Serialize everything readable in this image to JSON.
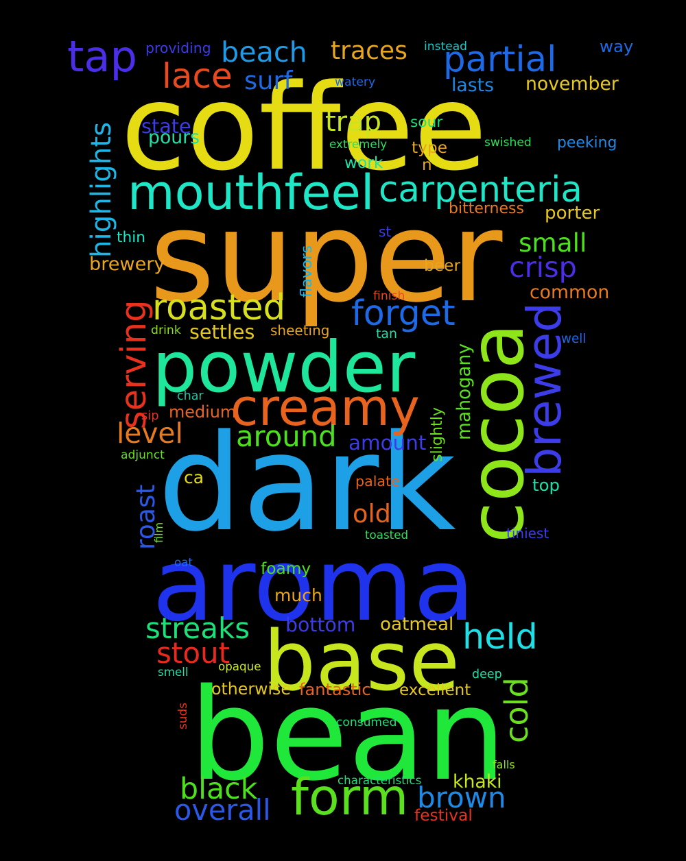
{
  "background": "#000000",
  "words": [
    {
      "text": "coffee",
      "color": "#e6dc14"
    },
    {
      "text": "super",
      "color": "#e8981a"
    },
    {
      "text": "dark",
      "color": "#1ea0e6"
    },
    {
      "text": "aroma",
      "color": "#1f32ec"
    },
    {
      "text": "bean",
      "color": "#1fe83a"
    },
    {
      "text": "base",
      "color": "#c8e61e"
    },
    {
      "text": "powder",
      "color": "#1ee69a"
    },
    {
      "text": "cocoa",
      "color": "#8ee61a"
    },
    {
      "text": "form",
      "color": "#5ae01e"
    },
    {
      "text": "mouthfeel",
      "color": "#1ee6c6"
    },
    {
      "text": "carpenteria",
      "color": "#1ee6c6"
    },
    {
      "text": "creamy",
      "color": "#e8641e"
    },
    {
      "text": "tap",
      "color": "#4b2ee8"
    },
    {
      "text": "partial",
      "color": "#1e6ae6"
    },
    {
      "text": "roasted",
      "color": "#d8e01e"
    },
    {
      "text": "forget",
      "color": "#1e6ae6"
    },
    {
      "text": "brewed",
      "color": "#3c3ce8"
    },
    {
      "text": "held",
      "color": "#1ee0e6"
    },
    {
      "text": "lace",
      "color": "#e84a1e"
    },
    {
      "text": "beach",
      "color": "#1e9ae6"
    },
    {
      "text": "surf",
      "color": "#1e6ae6"
    },
    {
      "text": "traces",
      "color": "#e8a61e"
    },
    {
      "text": "highlights",
      "color": "#1eb6e6"
    },
    {
      "text": "serving",
      "color": "#e8321e"
    },
    {
      "text": "trap",
      "color": "#c8e61e"
    },
    {
      "text": "streaks",
      "color": "#1ee07a"
    },
    {
      "text": "stout",
      "color": "#e82a1e"
    },
    {
      "text": "black",
      "color": "#4ee01e"
    },
    {
      "text": "brown",
      "color": "#1e8ae6"
    },
    {
      "text": "overall",
      "color": "#2a58e8"
    },
    {
      "text": "cold",
      "color": "#6ae01e"
    },
    {
      "text": "around",
      "color": "#4ee01e"
    },
    {
      "text": "level",
      "color": "#e87a1e"
    },
    {
      "text": "crisp",
      "color": "#4b2ee8"
    },
    {
      "text": "small",
      "color": "#4ee01e"
    },
    {
      "text": "old",
      "color": "#e8641e"
    },
    {
      "text": "roast",
      "color": "#2a58e8"
    },
    {
      "text": "lasts",
      "color": "#1e8ae6"
    },
    {
      "text": "november",
      "color": "#e6c81e"
    },
    {
      "text": "way",
      "color": "#1e6ae6"
    },
    {
      "text": "instead",
      "color": "#1ec6c6"
    },
    {
      "text": "providing",
      "color": "#3c3ce8"
    },
    {
      "text": "watery",
      "color": "#1e6ae6"
    },
    {
      "text": "state",
      "color": "#3c3ce8"
    },
    {
      "text": "pours",
      "color": "#1ee0a6"
    },
    {
      "text": "sour",
      "color": "#1ee07a"
    },
    {
      "text": "extremely",
      "color": "#2ae05a"
    },
    {
      "text": "swished",
      "color": "#2ae05a"
    },
    {
      "text": "peeking",
      "color": "#1e8ae6"
    },
    {
      "text": "type",
      "color": "#e8a61e"
    },
    {
      "text": "work",
      "color": "#1ee0a6"
    },
    {
      "text": "n",
      "color": "#e8a61e"
    },
    {
      "text": "bitterness",
      "color": "#e87a1e"
    },
    {
      "text": "porter",
      "color": "#e6c81e"
    },
    {
      "text": "thin",
      "color": "#1ee6c6"
    },
    {
      "text": "st",
      "color": "#3c3ce8"
    },
    {
      "text": "brewery",
      "color": "#e8a61e"
    },
    {
      "text": "flavors",
      "color": "#1eb6e6"
    },
    {
      "text": "beer",
      "color": "#e8a61e"
    },
    {
      "text": "finish",
      "color": "#e84a1e"
    },
    {
      "text": "common",
      "color": "#e87a1e"
    },
    {
      "text": "drink",
      "color": "#8ee01e"
    },
    {
      "text": "settles",
      "color": "#e6c81e"
    },
    {
      "text": "sheeting",
      "color": "#e8a61e"
    },
    {
      "text": "tan",
      "color": "#1ee0a6"
    },
    {
      "text": "well",
      "color": "#1e6ae6"
    },
    {
      "text": "mahogany",
      "color": "#5ae01e"
    },
    {
      "text": "slightly",
      "color": "#6ae01e"
    },
    {
      "text": "char",
      "color": "#1ec6a6"
    },
    {
      "text": "sip",
      "color": "#e8321e"
    },
    {
      "text": "medium",
      "color": "#e8641e"
    },
    {
      "text": "amount",
      "color": "#3c3ce8"
    },
    {
      "text": "adjunct",
      "color": "#6ae01e"
    },
    {
      "text": "ca",
      "color": "#e6dc14"
    },
    {
      "text": "palate",
      "color": "#e8641e"
    },
    {
      "text": "top",
      "color": "#1ee0a6"
    },
    {
      "text": "tiniest",
      "color": "#3c3ce8"
    },
    {
      "text": "film",
      "color": "#6ae01e"
    },
    {
      "text": "toasted",
      "color": "#2ae05a"
    },
    {
      "text": "oat",
      "color": "#1e6ae6"
    },
    {
      "text": "foamy",
      "color": "#4ee01e"
    },
    {
      "text": "much",
      "color": "#e8a61e"
    },
    {
      "text": "bottom",
      "color": "#3c3ce8"
    },
    {
      "text": "oatmeal",
      "color": "#e6c81e"
    },
    {
      "text": "opaque",
      "color": "#c8e61e"
    },
    {
      "text": "smell",
      "color": "#1ee0a6"
    },
    {
      "text": "deep",
      "color": "#1ee0a6"
    },
    {
      "text": "otherwise",
      "color": "#e6c81e"
    },
    {
      "text": "fantastic",
      "color": "#e8641e"
    },
    {
      "text": "excellent",
      "color": "#e6c81e"
    },
    {
      "text": "suds",
      "color": "#e8321e"
    },
    {
      "text": "consumed",
      "color": "#1ee07a"
    },
    {
      "text": "characteristics",
      "color": "#1ee07a"
    },
    {
      "text": "khaki",
      "color": "#c8e61e"
    },
    {
      "text": "falls",
      "color": "#8ee01e"
    },
    {
      "text": "festival",
      "color": "#e8321e"
    }
  ]
}
